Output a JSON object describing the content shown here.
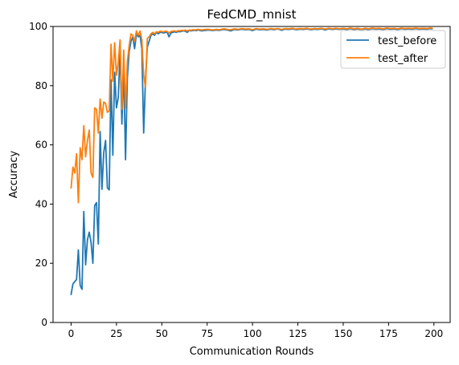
{
  "chart_data": {
    "type": "line",
    "title": "FedCMD_mnist",
    "xlabel": "Communication Rounds",
    "ylabel": "Accuracy",
    "xlim": [
      -9.95,
      208.95
    ],
    "ylim": [
      0,
      100
    ],
    "xticks": [
      0,
      25,
      50,
      75,
      100,
      125,
      150,
      175,
      200
    ],
    "yticks": [
      0,
      20,
      40,
      60,
      80,
      100
    ],
    "grid": false,
    "legend": "top-right",
    "series": [
      {
        "name": "test_before",
        "color": "#1f77b4",
        "points": [
          [
            0,
            9.5
          ],
          [
            1,
            13.0
          ],
          [
            2,
            13.8
          ],
          [
            3,
            14.5
          ],
          [
            4,
            24.5
          ],
          [
            5,
            12.5
          ],
          [
            6,
            11.2
          ],
          [
            7,
            37.5
          ],
          [
            8,
            19.5
          ],
          [
            9,
            28.0
          ],
          [
            10,
            30.5
          ],
          [
            11,
            27.0
          ],
          [
            12,
            20.0
          ],
          [
            13,
            39.5
          ],
          [
            14,
            40.5
          ],
          [
            15,
            26.5
          ],
          [
            16,
            64.5
          ],
          [
            17,
            45.0
          ],
          [
            18,
            57.5
          ],
          [
            19,
            61.5
          ],
          [
            20,
            45.5
          ],
          [
            21,
            44.8
          ],
          [
            22,
            82.0
          ],
          [
            23,
            56.5
          ],
          [
            24,
            84.5
          ],
          [
            25,
            72.5
          ],
          [
            26,
            76.0
          ],
          [
            27,
            92.0
          ],
          [
            28,
            67.0
          ],
          [
            29,
            86.5
          ],
          [
            30,
            55.0
          ],
          [
            31,
            82.5
          ],
          [
            32,
            91.5
          ],
          [
            33,
            95.0
          ],
          [
            34,
            96.5
          ],
          [
            35,
            92.5
          ],
          [
            36,
            97.5
          ],
          [
            37,
            96.5
          ],
          [
            38,
            97.0
          ],
          [
            39,
            92.5
          ],
          [
            40,
            64.0
          ],
          [
            41,
            82.0
          ],
          [
            42,
            93.0
          ],
          [
            43,
            95.0
          ],
          [
            44,
            97.0
          ],
          [
            45,
            97.5
          ],
          [
            46,
            97.0
          ],
          [
            47,
            98.0
          ],
          [
            48,
            97.5
          ],
          [
            49,
            98.0
          ],
          [
            50,
            98.0
          ],
          [
            51,
            97.8
          ],
          [
            52,
            98.0
          ],
          [
            53,
            98.0
          ],
          [
            54,
            96.5
          ],
          [
            55,
            97.8
          ],
          [
            56,
            98.0
          ],
          [
            57,
            98.2
          ],
          [
            58,
            98.0
          ],
          [
            59,
            98.3
          ],
          [
            60,
            98.2
          ],
          [
            61,
            98.4
          ],
          [
            62,
            98.5
          ],
          [
            63,
            98.4
          ],
          [
            64,
            98.0
          ],
          [
            65,
            98.6
          ],
          [
            66,
            98.5
          ],
          [
            67,
            98.6
          ],
          [
            68,
            98.7
          ],
          [
            69,
            98.6
          ],
          [
            70,
            98.8
          ],
          [
            72,
            98.5
          ],
          [
            74,
            98.7
          ],
          [
            76,
            98.8
          ],
          [
            78,
            98.6
          ],
          [
            80,
            98.8
          ],
          [
            82,
            98.7
          ],
          [
            84,
            99.0
          ],
          [
            86,
            98.8
          ],
          [
            88,
            98.5
          ],
          [
            90,
            99.0
          ],
          [
            92,
            98.8
          ],
          [
            94,
            99.1
          ],
          [
            96,
            98.9
          ],
          [
            98,
            99.0
          ],
          [
            100,
            98.6
          ],
          [
            102,
            99.1
          ],
          [
            104,
            98.9
          ],
          [
            106,
            99.0
          ],
          [
            108,
            98.8
          ],
          [
            110,
            99.1
          ],
          [
            112,
            98.9
          ],
          [
            114,
            99.2
          ],
          [
            116,
            98.7
          ],
          [
            118,
            99.1
          ],
          [
            120,
            99.0
          ],
          [
            122,
            99.2
          ],
          [
            124,
            98.9
          ],
          [
            126,
            99.1
          ],
          [
            128,
            99.0
          ],
          [
            130,
            99.2
          ],
          [
            132,
            98.9
          ],
          [
            134,
            99.1
          ],
          [
            136,
            99.0
          ],
          [
            138,
            99.2
          ],
          [
            140,
            98.8
          ],
          [
            142,
            99.2
          ],
          [
            144,
            99.0
          ],
          [
            146,
            99.2
          ],
          [
            148,
            99.0
          ],
          [
            150,
            99.2
          ],
          [
            152,
            99.0
          ],
          [
            154,
            99.3
          ],
          [
            156,
            99.0
          ],
          [
            158,
            99.2
          ],
          [
            160,
            98.9
          ],
          [
            162,
            99.2
          ],
          [
            164,
            99.0
          ],
          [
            166,
            99.3
          ],
          [
            168,
            99.1
          ],
          [
            170,
            99.2
          ],
          [
            172,
            99.0
          ],
          [
            174,
            99.3
          ],
          [
            176,
            99.1
          ],
          [
            178,
            99.2
          ],
          [
            180,
            99.0
          ],
          [
            182,
            99.3
          ],
          [
            184,
            99.1
          ],
          [
            186,
            99.2
          ],
          [
            188,
            99.1
          ],
          [
            190,
            99.3
          ],
          [
            192,
            99.1
          ],
          [
            194,
            99.2
          ],
          [
            196,
            99.1
          ],
          [
            198,
            99.3
          ],
          [
            199,
            99.2
          ]
        ]
      },
      {
        "name": "test_after",
        "color": "#ff7f0e",
        "points": [
          [
            0,
            45.5
          ],
          [
            1,
            52.5
          ],
          [
            2,
            50.5
          ],
          [
            3,
            57.0
          ],
          [
            4,
            40.5
          ],
          [
            5,
            59.0
          ],
          [
            6,
            55.0
          ],
          [
            7,
            66.5
          ],
          [
            8,
            56.0
          ],
          [
            9,
            61.5
          ],
          [
            10,
            65.0
          ],
          [
            11,
            50.5
          ],
          [
            12,
            49.0
          ],
          [
            13,
            72.5
          ],
          [
            14,
            72.0
          ],
          [
            15,
            64.0
          ],
          [
            16,
            75.5
          ],
          [
            17,
            69.0
          ],
          [
            18,
            74.5
          ],
          [
            19,
            74.0
          ],
          [
            20,
            71.0
          ],
          [
            21,
            71.5
          ],
          [
            22,
            94.0
          ],
          [
            23,
            81.5
          ],
          [
            24,
            94.5
          ],
          [
            25,
            83.5
          ],
          [
            26,
            88.0
          ],
          [
            27,
            95.5
          ],
          [
            28,
            72.0
          ],
          [
            29,
            92.0
          ],
          [
            30,
            72.5
          ],
          [
            31,
            88.0
          ],
          [
            32,
            93.5
          ],
          [
            33,
            97.5
          ],
          [
            34,
            97.0
          ],
          [
            35,
            95.0
          ],
          [
            36,
            98.5
          ],
          [
            37,
            97.0
          ],
          [
            38,
            98.5
          ],
          [
            39,
            95.5
          ],
          [
            40,
            83.5
          ],
          [
            41,
            79.5
          ],
          [
            42,
            96.0
          ],
          [
            43,
            96.5
          ],
          [
            44,
            97.5
          ],
          [
            45,
            98.0
          ],
          [
            46,
            97.5
          ],
          [
            47,
            98.2
          ],
          [
            48,
            98.0
          ],
          [
            49,
            98.4
          ],
          [
            50,
            98.3
          ],
          [
            51,
            98.2
          ],
          [
            52,
            98.4
          ],
          [
            53,
            98.3
          ],
          [
            54,
            97.8
          ],
          [
            55,
            98.3
          ],
          [
            56,
            98.4
          ],
          [
            57,
            98.5
          ],
          [
            58,
            98.3
          ],
          [
            59,
            98.6
          ],
          [
            60,
            98.5
          ],
          [
            61,
            98.7
          ],
          [
            62,
            98.6
          ],
          [
            63,
            98.8
          ],
          [
            64,
            98.5
          ],
          [
            65,
            98.8
          ],
          [
            66,
            98.7
          ],
          [
            67,
            98.9
          ],
          [
            68,
            98.8
          ],
          [
            69,
            98.9
          ],
          [
            70,
            99.0
          ],
          [
            72,
            98.8
          ],
          [
            74,
            99.0
          ],
          [
            76,
            99.0
          ],
          [
            78,
            98.8
          ],
          [
            80,
            99.0
          ],
          [
            82,
            98.9
          ],
          [
            84,
            99.2
          ],
          [
            86,
            99.0
          ],
          [
            88,
            98.9
          ],
          [
            90,
            99.2
          ],
          [
            92,
            99.0
          ],
          [
            94,
            99.3
          ],
          [
            96,
            99.1
          ],
          [
            98,
            99.2
          ],
          [
            100,
            98.9
          ],
          [
            102,
            99.3
          ],
          [
            104,
            99.1
          ],
          [
            106,
            99.2
          ],
          [
            108,
            99.0
          ],
          [
            110,
            99.3
          ],
          [
            112,
            99.1
          ],
          [
            114,
            99.3
          ],
          [
            116,
            99.0
          ],
          [
            118,
            99.3
          ],
          [
            120,
            99.2
          ],
          [
            122,
            99.4
          ],
          [
            124,
            99.1
          ],
          [
            126,
            99.3
          ],
          [
            128,
            99.2
          ],
          [
            130,
            99.4
          ],
          [
            132,
            99.1
          ],
          [
            134,
            99.3
          ],
          [
            136,
            99.2
          ],
          [
            138,
            99.4
          ],
          [
            140,
            99.1
          ],
          [
            142,
            99.4
          ],
          [
            144,
            99.2
          ],
          [
            146,
            99.4
          ],
          [
            148,
            99.2
          ],
          [
            150,
            99.4
          ],
          [
            152,
            99.2
          ],
          [
            154,
            99.5
          ],
          [
            156,
            99.2
          ],
          [
            158,
            99.4
          ],
          [
            160,
            99.1
          ],
          [
            162,
            99.4
          ],
          [
            164,
            99.2
          ],
          [
            166,
            99.5
          ],
          [
            168,
            99.3
          ],
          [
            170,
            99.4
          ],
          [
            172,
            99.2
          ],
          [
            174,
            99.5
          ],
          [
            176,
            99.3
          ],
          [
            178,
            99.4
          ],
          [
            180,
            99.2
          ],
          [
            182,
            99.5
          ],
          [
            184,
            99.3
          ],
          [
            186,
            99.4
          ],
          [
            188,
            99.3
          ],
          [
            190,
            99.5
          ],
          [
            192,
            99.3
          ],
          [
            194,
            99.4
          ],
          [
            196,
            99.3
          ],
          [
            198,
            99.5
          ],
          [
            199,
            99.4
          ]
        ]
      }
    ]
  }
}
